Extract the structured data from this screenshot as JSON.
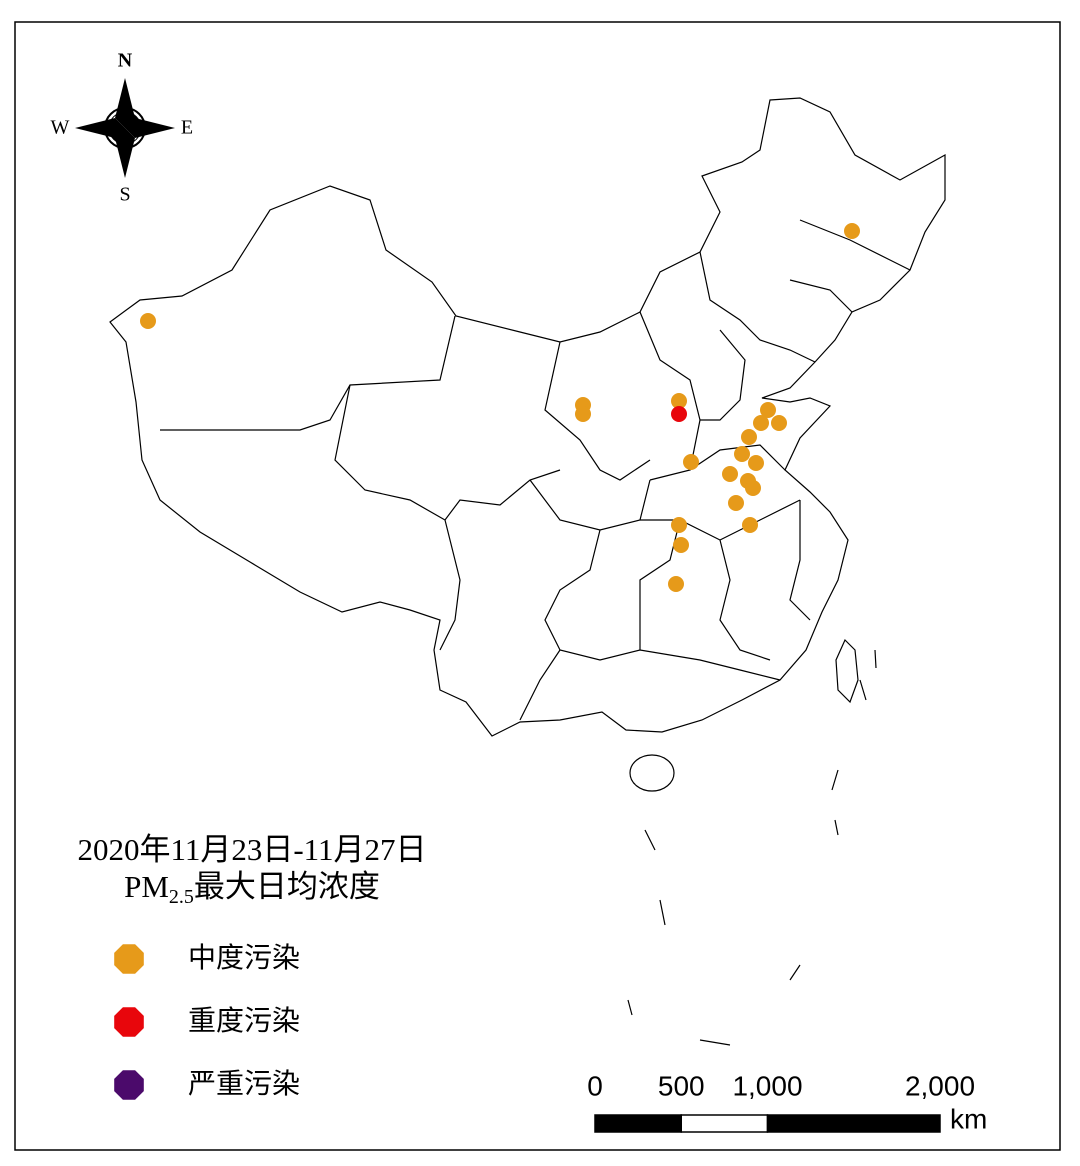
{
  "compass": {
    "north": "N",
    "south": "S",
    "west": "W",
    "east": "E"
  },
  "title": {
    "line1": "2020年11月23日-11月27日",
    "line2_prefix": "PM",
    "line2_subscript": "2.5",
    "line2_suffix": "最大日均浓度"
  },
  "legend": {
    "items": [
      {
        "name": "中度污染",
        "color": "#e69a1a"
      },
      {
        "name": "重度污染",
        "color": "#e8060c"
      },
      {
        "name": "严重污染",
        "color": "#4b0a6b"
      }
    ]
  },
  "scale_bar": {
    "ticks": [
      0,
      500,
      {
        "value": 1000,
        "label": "1,000"
      },
      {
        "value": 2000,
        "label": "2,000"
      }
    ],
    "unit": "km"
  }
}
